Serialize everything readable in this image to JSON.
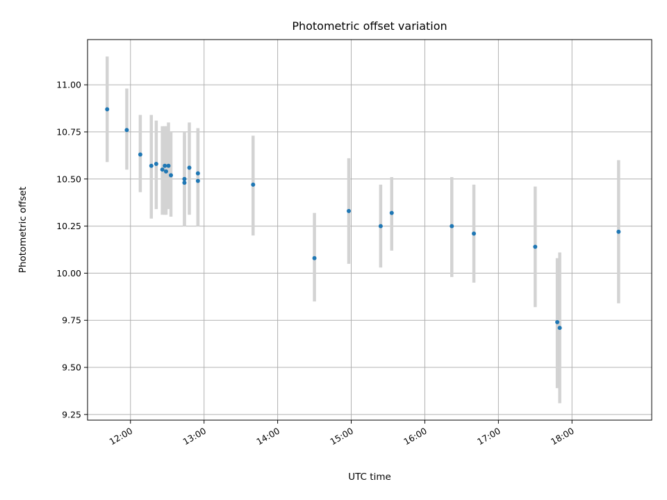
{
  "chart_data": {
    "type": "scatter",
    "title": "Photometric offset variation",
    "xlabel": "UTC time",
    "ylabel": "Photometric offset",
    "x_ticks": [
      "12:00",
      "13:00",
      "14:00",
      "15:00",
      "16:00",
      "17:00",
      "18:00"
    ],
    "y_ticks": [
      "9.25",
      "9.50",
      "9.75",
      "10.00",
      "10.25",
      "10.50",
      "10.75",
      "11.00"
    ],
    "xlim": [
      "11:25",
      "19:05"
    ],
    "ylim": [
      9.22,
      11.24
    ],
    "grid": true,
    "x_tick_rotation": -30,
    "marker_color": "#1f77b4",
    "errorbar_color": "#d3d3d3",
    "series": [
      {
        "points": [
          {
            "x": "11:41",
            "y": 10.87,
            "ylow": 10.59,
            "yhigh": 11.15
          },
          {
            "x": "11:57",
            "y": 10.76,
            "ylow": 10.55,
            "yhigh": 10.98
          },
          {
            "x": "12:08",
            "y": 10.63,
            "ylow": 10.43,
            "yhigh": 10.84
          },
          {
            "x": "12:17",
            "y": 10.57,
            "ylow": 10.29,
            "yhigh": 10.84
          },
          {
            "x": "12:21",
            "y": 10.58,
            "ylow": 10.34,
            "yhigh": 10.81
          },
          {
            "x": "12:26",
            "y": 10.55,
            "ylow": 10.31,
            "yhigh": 10.78
          },
          {
            "x": "12:28",
            "y": 10.57,
            "ylow": 10.31,
            "yhigh": 10.78
          },
          {
            "x": "12:29",
            "y": 10.54,
            "ylow": 10.31,
            "yhigh": 10.78
          },
          {
            "x": "12:31",
            "y": 10.57,
            "ylow": 10.34,
            "yhigh": 10.8
          },
          {
            "x": "12:33",
            "y": 10.52,
            "ylow": 10.3,
            "yhigh": 10.75
          },
          {
            "x": "12:44",
            "y": 10.5,
            "ylow": 10.25,
            "yhigh": 10.75
          },
          {
            "x": "12:44",
            "y": 10.48,
            "ylow": 10.25,
            "yhigh": 10.73
          },
          {
            "x": "12:48",
            "y": 10.56,
            "ylow": 10.31,
            "yhigh": 10.8
          },
          {
            "x": "12:55",
            "y": 10.53,
            "ylow": 10.25,
            "yhigh": 10.77
          },
          {
            "x": "12:55",
            "y": 10.49,
            "ylow": 10.25,
            "yhigh": 10.77
          },
          {
            "x": "13:40",
            "y": 10.47,
            "ylow": 10.2,
            "yhigh": 10.73
          },
          {
            "x": "14:30",
            "y": 10.08,
            "ylow": 9.85,
            "yhigh": 10.32
          },
          {
            "x": "14:58",
            "y": 10.33,
            "ylow": 10.05,
            "yhigh": 10.61
          },
          {
            "x": "15:24",
            "y": 10.25,
            "ylow": 10.03,
            "yhigh": 10.47
          },
          {
            "x": "15:33",
            "y": 10.32,
            "ylow": 10.12,
            "yhigh": 10.51
          },
          {
            "x": "16:22",
            "y": 10.25,
            "ylow": 9.98,
            "yhigh": 10.51
          },
          {
            "x": "16:40",
            "y": 10.21,
            "ylow": 9.95,
            "yhigh": 10.47
          },
          {
            "x": "17:30",
            "y": 10.14,
            "ylow": 9.82,
            "yhigh": 10.46
          },
          {
            "x": "17:48",
            "y": 9.74,
            "ylow": 9.39,
            "yhigh": 10.08
          },
          {
            "x": "17:50",
            "y": 9.71,
            "ylow": 9.31,
            "yhigh": 10.11
          },
          {
            "x": "18:38",
            "y": 10.22,
            "ylow": 9.84,
            "yhigh": 10.6
          }
        ]
      }
    ]
  }
}
